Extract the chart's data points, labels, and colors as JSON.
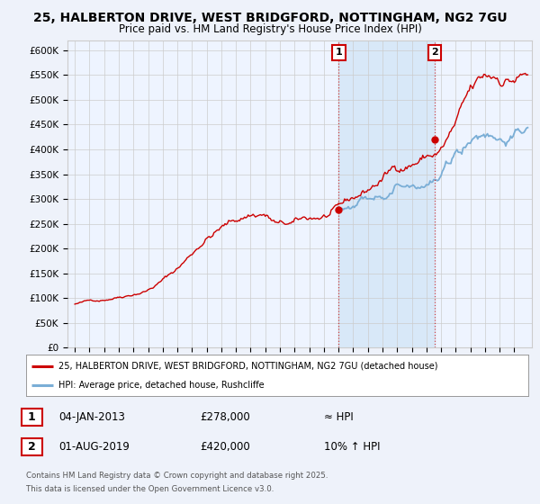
{
  "title": "25, HALBERTON DRIVE, WEST BRIDGFORD, NOTTINGHAM, NG2 7GU",
  "subtitle": "Price paid vs. HM Land Registry's House Price Index (HPI)",
  "ylabel_ticks": [
    "£0",
    "£50K",
    "£100K",
    "£150K",
    "£200K",
    "£250K",
    "£300K",
    "£350K",
    "£400K",
    "£450K",
    "£500K",
    "£550K",
    "£600K"
  ],
  "ytick_values": [
    0,
    50000,
    100000,
    150000,
    200000,
    250000,
    300000,
    350000,
    400000,
    450000,
    500000,
    550000,
    600000
  ],
  "ylim": [
    0,
    620000
  ],
  "xlim_start": 1994.5,
  "xlim_end": 2026.2,
  "sale1_x": 2013.02,
  "sale1_price": 278000,
  "sale2_x": 2019.58,
  "sale2_price": 420000,
  "blue_hpi_start_year": 2013.0,
  "legend_line1": "25, HALBERTON DRIVE, WEST BRIDGFORD, NOTTINGHAM, NG2 7GU (detached house)",
  "legend_line2": "HPI: Average price, detached house, Rushcliffe",
  "footer1": "Contains HM Land Registry data © Crown copyright and database right 2025.",
  "footer2": "This data is licensed under the Open Government Licence v3.0.",
  "note1_label": "1",
  "note1_date": "04-JAN-2013",
  "note1_price": "£278,000",
  "note1_hpi": "≈ HPI",
  "note2_label": "2",
  "note2_date": "01-AUG-2019",
  "note2_price": "£420,000",
  "note2_hpi": "10% ↑ HPI",
  "red_color": "#CC0000",
  "blue_color": "#7AAED6",
  "shade_color": "#D8E8F8",
  "background_color": "#EEF2FA",
  "plot_bg": "#FFFFFF",
  "grid_color": "#CCCCCC",
  "plot_bg_tint": "#EEF4FF"
}
